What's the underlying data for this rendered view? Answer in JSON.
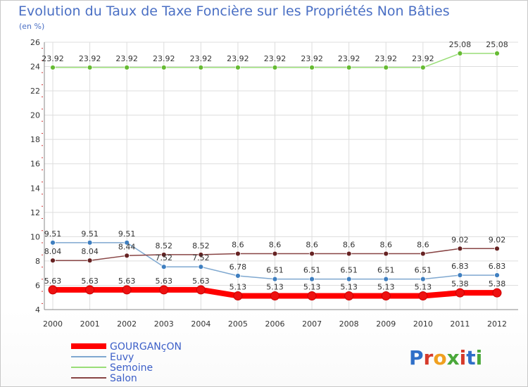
{
  "chart_data": {
    "type": "line",
    "title": "Evolution du Taux de Taxe Foncière sur les Propriétés Non Bâties",
    "subtitle": "(en %)",
    "xlabel": "",
    "ylabel": "",
    "ylim": [
      4,
      26
    ],
    "yticks": [
      4,
      6,
      8,
      10,
      12,
      14,
      16,
      18,
      20,
      22,
      24,
      26
    ],
    "categories": [
      "2000",
      "2001",
      "2002",
      "2003",
      "2004",
      "2005",
      "2006",
      "2007",
      "2008",
      "2009",
      "2010",
      "2011",
      "2012"
    ],
    "grid": true,
    "legend_position": "bottom-left",
    "series": [
      {
        "name": "GOURGANçON",
        "color": "#ff0000",
        "marker_color": "#ee1111",
        "values": [
          5.63,
          5.63,
          5.63,
          5.63,
          5.63,
          5.13,
          5.13,
          5.13,
          5.13,
          5.13,
          5.13,
          5.38,
          5.38
        ],
        "labels": [
          "5.63",
          "5.63",
          "5.63",
          "5.63",
          "5.63",
          "5.13",
          "5.13",
          "5.13",
          "5.13",
          "5.13",
          "5.13",
          "5.38",
          "5.38"
        ]
      },
      {
        "name": "Euvy",
        "color": "#7fa8d0",
        "marker_color": "#3f7fc0",
        "values": [
          9.51,
          9.51,
          9.51,
          7.52,
          7.52,
          6.78,
          6.51,
          6.51,
          6.51,
          6.51,
          6.51,
          6.83,
          6.83
        ],
        "labels": [
          "9.51",
          "9.51",
          "9.51",
          "7.52",
          "7.52",
          "6.78",
          "6.51",
          "6.51",
          "6.51",
          "6.51",
          "6.51",
          "6.83",
          "6.83"
        ]
      },
      {
        "name": "Semoine",
        "color": "#99dd77",
        "marker_color": "#66bb33",
        "values": [
          23.92,
          23.92,
          23.92,
          23.92,
          23.92,
          23.92,
          23.92,
          23.92,
          23.92,
          23.92,
          23.92,
          25.08,
          25.08
        ],
        "labels": [
          "23.92",
          "23.92",
          "23.92",
          "23.92",
          "23.92",
          "23.92",
          "23.92",
          "23.92",
          "23.92",
          "23.92",
          "23.92",
          "25.08",
          "25.08"
        ]
      },
      {
        "name": "Salon",
        "color": "#884444",
        "marker_color": "#662222",
        "values": [
          8.04,
          8.04,
          8.44,
          8.52,
          8.52,
          8.6,
          8.6,
          8.6,
          8.6,
          8.6,
          8.6,
          9.02,
          9.02
        ],
        "labels": [
          "8.04",
          "8.04",
          "8.44",
          "8.52",
          "8.52",
          "8.6",
          "8.6",
          "8.6",
          "8.6",
          "8.6",
          "8.6",
          "9.02",
          "9.02"
        ]
      }
    ]
  },
  "logo": {
    "text": "Proxiti",
    "letter_colors": [
      "#2f6fc8",
      "#d63a2a",
      "#f0a020",
      "#4aa83a",
      "#d63a2a",
      "#2f6fc8",
      "#4aa83a"
    ]
  }
}
